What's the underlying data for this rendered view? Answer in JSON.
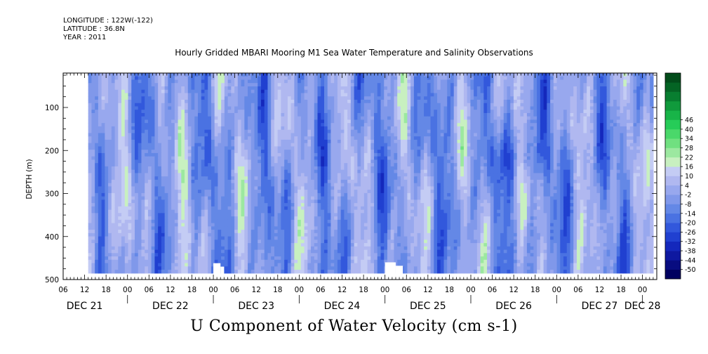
{
  "header": {
    "longitude": "LONGITUDE : 122W(-122)",
    "latitude": "LATITUDE : 36.8N",
    "year": "YEAR : 2011"
  },
  "chart_data": {
    "type": "heatmap",
    "title": "Hourly Gridded MBARI Mooring M1 Sea Water Temperature and Salinity Observations",
    "variable_label": "U Component of Water Velocity (cm s-1)",
    "ylabel": "DEPTH (m)",
    "xlabel": "",
    "y_reversed": true,
    "ylim": [
      500,
      20
    ],
    "y_ticks": [
      100,
      200,
      300,
      400,
      500
    ],
    "y_tick_labels": [
      "100",
      "200",
      "300",
      "400",
      "500"
    ],
    "data_depth_range": [
      20,
      485
    ],
    "x_start": "2011-12-21T06:00",
    "x_end": "2011-12-28T04:00",
    "data_time_range": [
      "2011-12-21T13:00",
      "2011-12-28T03:00"
    ],
    "x_hour_ticks": [
      {
        "t": "2011-12-21T06:00",
        "label": "06"
      },
      {
        "t": "2011-12-21T12:00",
        "label": "12"
      },
      {
        "t": "2011-12-21T18:00",
        "label": "18"
      },
      {
        "t": "2011-12-22T00:00",
        "label": "00"
      },
      {
        "t": "2011-12-22T06:00",
        "label": "06"
      },
      {
        "t": "2011-12-22T12:00",
        "label": "12"
      },
      {
        "t": "2011-12-22T18:00",
        "label": "18"
      },
      {
        "t": "2011-12-23T00:00",
        "label": "00"
      },
      {
        "t": "2011-12-23T06:00",
        "label": "06"
      },
      {
        "t": "2011-12-23T12:00",
        "label": "12"
      },
      {
        "t": "2011-12-23T18:00",
        "label": "18"
      },
      {
        "t": "2011-12-24T00:00",
        "label": "00"
      },
      {
        "t": "2011-12-24T06:00",
        "label": "06"
      },
      {
        "t": "2011-12-24T12:00",
        "label": "12"
      },
      {
        "t": "2011-12-24T18:00",
        "label": "18"
      },
      {
        "t": "2011-12-25T00:00",
        "label": "00"
      },
      {
        "t": "2011-12-25T06:00",
        "label": "06"
      },
      {
        "t": "2011-12-25T12:00",
        "label": "12"
      },
      {
        "t": "2011-12-25T18:00",
        "label": "18"
      },
      {
        "t": "2011-12-26T00:00",
        "label": "00"
      },
      {
        "t": "2011-12-26T06:00",
        "label": "06"
      },
      {
        "t": "2011-12-26T12:00",
        "label": "12"
      },
      {
        "t": "2011-12-26T18:00",
        "label": "18"
      },
      {
        "t": "2011-12-27T00:00",
        "label": "00"
      },
      {
        "t": "2011-12-27T06:00",
        "label": "06"
      },
      {
        "t": "2011-12-27T12:00",
        "label": "12"
      },
      {
        "t": "2011-12-27T18:00",
        "label": "18"
      },
      {
        "t": "2011-12-28T00:00",
        "label": "00"
      }
    ],
    "x_day_labels": [
      {
        "t": "2011-12-21T12:00",
        "label": "DEC 21"
      },
      {
        "t": "2011-12-22T12:00",
        "label": "DEC 22"
      },
      {
        "t": "2011-12-23T12:00",
        "label": "DEC 23"
      },
      {
        "t": "2011-12-24T12:00",
        "label": "DEC 24"
      },
      {
        "t": "2011-12-25T12:00",
        "label": "DEC 25"
      },
      {
        "t": "2011-12-26T12:00",
        "label": "DEC 26"
      },
      {
        "t": "2011-12-27T12:00",
        "label": "DEC 27"
      },
      {
        "t": "2011-12-28T00:00",
        "label": "DEC 28"
      }
    ],
    "colorbar": {
      "levels": [
        -50,
        -44,
        -38,
        -32,
        -26,
        -20,
        -14,
        -8,
        -2,
        4,
        10,
        16,
        22,
        28,
        34,
        40,
        46
      ],
      "level_labels": [
        "-50",
        "-44",
        "-38",
        "-32",
        "-26",
        "-20",
        "-14",
        "-8",
        "-2",
        "4",
        "10",
        "16",
        "22",
        "28",
        "34",
        "40",
        "46"
      ],
      "band_colors": [
        "#000060",
        "#080c80",
        "#0e18a0",
        "#1428bc",
        "#2040d0",
        "#3258dc",
        "#4a72e2",
        "#6488e6",
        "#8098ea",
        "#98a8ee",
        "#b0b8f0",
        "#c4ccf4",
        "#c8f0c0",
        "#9ce8a0",
        "#70e080",
        "#4ad86a",
        "#26cc58",
        "#18b448",
        "#109a3c",
        "#087e30",
        "#046424",
        "#024c1a"
      ]
    },
    "missing_data_color": "#ffffff",
    "data_summary": "Alternating bands of negative (blue, about -2 to -26 cm/s) and positive (green, about 4 to 28 cm/s) U velocity across depth 20-485 m; strongest positive cores near 300-400 m on DEC 21 and DEC 22; strongest negative near 200-230 m on DEC 26-27."
  }
}
